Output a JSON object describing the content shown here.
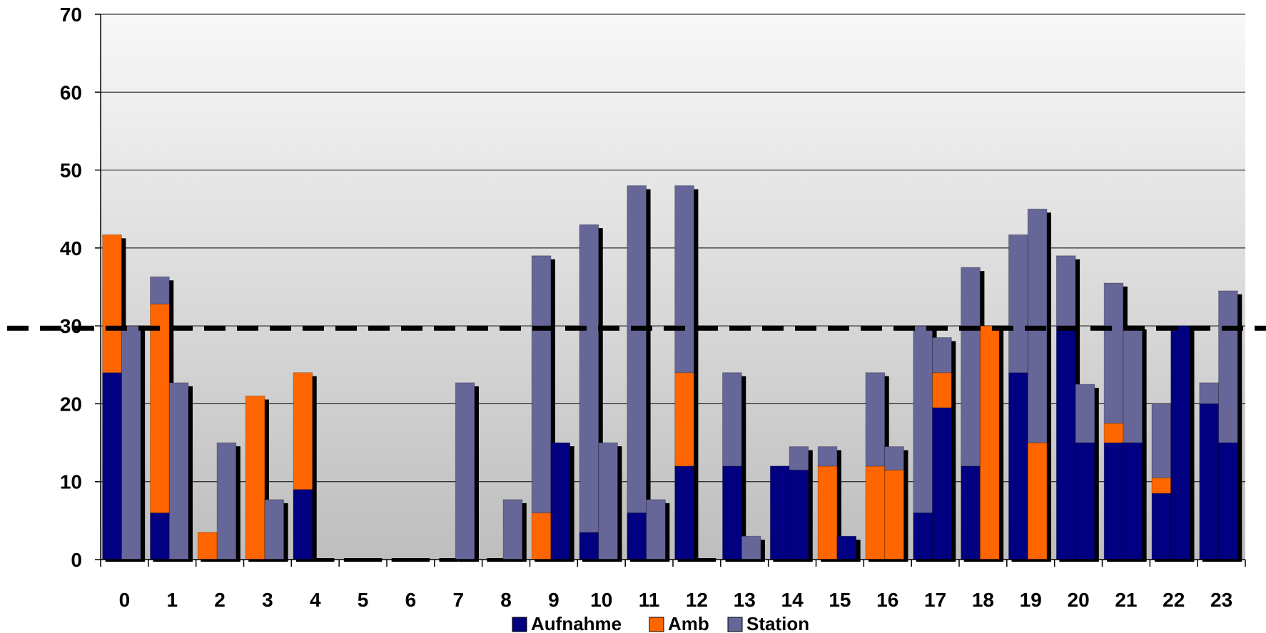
{
  "chart_data": {
    "type": "bar",
    "stacked": true,
    "bars_per_category": 2,
    "categories": [
      "0",
      "1",
      "2",
      "3",
      "4",
      "5",
      "6",
      "7",
      "8",
      "9",
      "10",
      "11",
      "12",
      "13",
      "14",
      "15",
      "16",
      "17",
      "18",
      "19",
      "20",
      "21",
      "22",
      "23"
    ],
    "ylim": [
      0,
      70
    ],
    "yticks": [
      0,
      10,
      20,
      30,
      40,
      50,
      60,
      70
    ],
    "grid": true,
    "legend_position": "bottom",
    "reference_line": {
      "value": 29.7,
      "style": "dashed"
    },
    "series": [
      {
        "name": "Aufnahme",
        "color": "#000080",
        "values": [
          [
            24,
            0
          ],
          [
            6,
            0
          ],
          [
            0,
            0
          ],
          [
            0,
            0
          ],
          [
            9,
            0
          ],
          [
            0,
            0
          ],
          [
            0,
            0
          ],
          [
            0,
            0
          ],
          [
            0,
            0
          ],
          [
            0,
            15
          ],
          [
            3.5,
            0
          ],
          [
            6,
            0
          ],
          [
            12,
            0
          ],
          [
            12,
            0
          ],
          [
            12,
            11.5
          ],
          [
            0,
            3
          ],
          [
            0,
            0
          ],
          [
            6,
            19.5
          ],
          [
            12,
            0
          ],
          [
            24,
            0
          ],
          [
            30,
            15
          ],
          [
            15,
            15
          ],
          [
            8.5,
            30
          ],
          [
            20,
            15
          ]
        ]
      },
      {
        "name": "Amb",
        "color": "#FF6600",
        "values": [
          [
            17.7,
            0
          ],
          [
            26.8,
            0
          ],
          [
            3.5,
            0
          ],
          [
            21,
            0
          ],
          [
            15,
            0
          ],
          [
            0,
            0
          ],
          [
            0,
            0
          ],
          [
            0,
            0
          ],
          [
            0,
            0
          ],
          [
            6,
            0
          ],
          [
            0,
            0
          ],
          [
            0,
            0
          ],
          [
            12,
            0
          ],
          [
            0,
            0
          ],
          [
            0,
            0
          ],
          [
            12,
            0
          ],
          [
            12,
            11.5
          ],
          [
            0,
            4.5
          ],
          [
            0,
            30
          ],
          [
            0,
            15
          ],
          [
            0,
            0
          ],
          [
            2.5,
            0
          ],
          [
            2,
            0
          ],
          [
            0,
            0
          ]
        ]
      },
      {
        "name": "Station",
        "color": "#666699",
        "values": [
          [
            0,
            30
          ],
          [
            3.5,
            22.7
          ],
          [
            0,
            15
          ],
          [
            0,
            7.7
          ],
          [
            0,
            0
          ],
          [
            0,
            0
          ],
          [
            0,
            0
          ],
          [
            0,
            22.7
          ],
          [
            0,
            7.7
          ],
          [
            33,
            0
          ],
          [
            39.5,
            15
          ],
          [
            42,
            7.7
          ],
          [
            24,
            0
          ],
          [
            12,
            3
          ],
          [
            0,
            3
          ],
          [
            2.5,
            0
          ],
          [
            12,
            3
          ],
          [
            24,
            4.5
          ],
          [
            25.5,
            0
          ],
          [
            17.7,
            30
          ],
          [
            9,
            7.5
          ],
          [
            18,
            15
          ],
          [
            9.5,
            0
          ],
          [
            2.7,
            19.5
          ]
        ]
      }
    ]
  }
}
